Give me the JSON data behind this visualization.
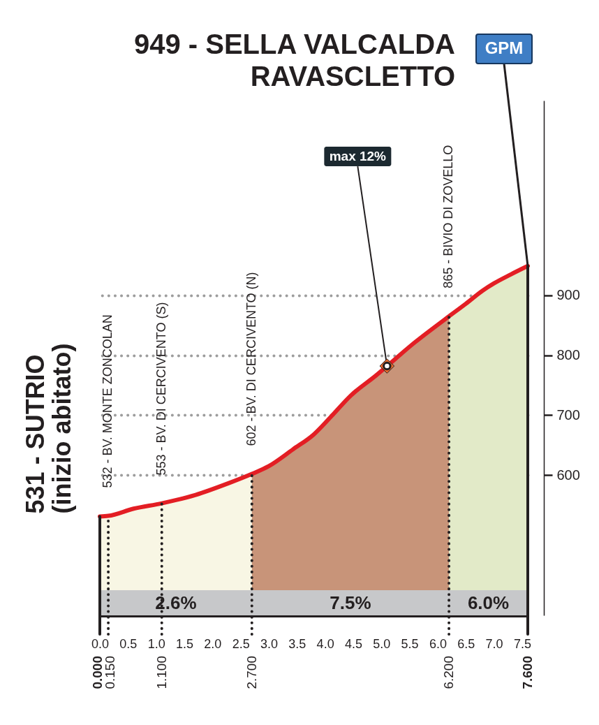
{
  "chart_data": {
    "type": "area",
    "title": "949 - SELLA VALCALDA\nRAVASCLETTO",
    "xlim": [
      0,
      7.6
    ],
    "xticks": [
      {
        "value": 0,
        "label": "0.0"
      },
      0.5,
      {
        "value": 1,
        "label": "1.0"
      },
      1.5,
      {
        "value": 2,
        "label": "2.0"
      },
      2.5,
      {
        "value": 3,
        "label": "3.0"
      },
      3.5,
      {
        "value": 4,
        "label": "4.0"
      },
      4.5,
      {
        "value": 5,
        "label": "5.0"
      },
      5.5,
      {
        "value": 6,
        "label": "6.0"
      },
      6.5,
      {
        "value": 7,
        "label": "7.0"
      },
      7.5
    ],
    "ylim": [
      366,
      1225
    ],
    "yticks": [
      600,
      700,
      800,
      900
    ],
    "grid": "y",
    "series": [
      {
        "name": "2.6%",
        "color": "#f8f6e4",
        "x": [
          0,
          0.15,
          0.6,
          1.1,
          1.7,
          2.3,
          2.7
        ],
        "values": [
          531,
          532,
          544,
          553,
          567,
          587,
          602
        ]
      },
      {
        "name": "7.5%",
        "color": "#c89479",
        "x": [
          2.7,
          3.0,
          3.43,
          3.8,
          4.1,
          4.46,
          4.9,
          5.6,
          6.2
        ],
        "values": [
          602,
          615,
          643,
          668,
          697,
          733,
          766,
          822,
          865
        ]
      },
      {
        "name": "6.0%",
        "color": "#e2eac8",
        "x": [
          6.2,
          6.5,
          6.8,
          7.0,
          7.3,
          7.6
        ],
        "values": [
          865,
          886,
          908,
          920,
          935,
          949
        ]
      },
      {
        "type": "line",
        "color": "#e31e24",
        "x": [
          0,
          0.15,
          0.6,
          1.1,
          1.7,
          2.3,
          2.7,
          3.0,
          3.43,
          3.8,
          4.1,
          4.46,
          4.9,
          5.6,
          6.2,
          6.5,
          6.8,
          7.0,
          7.3,
          7.6
        ],
        "values": [
          531,
          532,
          544,
          553,
          567,
          587,
          602,
          615,
          643,
          668,
          697,
          733,
          766,
          822,
          865,
          886,
          908,
          920,
          935,
          949
        ]
      }
    ],
    "bands": [
      {
        "axis": "y",
        "from": 366,
        "to": 408,
        "color": "#c7c8ca"
      }
    ],
    "ref_lines": [
      {
        "axis": "x",
        "value": 0,
        "label": "0.000",
        "line_style": "solid"
      },
      {
        "axis": "x",
        "value": 0.15,
        "label": "0.150",
        "line_style": "dotted"
      },
      {
        "axis": "x",
        "value": 1.1,
        "label": "1.100",
        "line_style": "dotted"
      },
      {
        "axis": "x",
        "value": 2.7,
        "label": "2.700",
        "line_style": "dotted"
      },
      {
        "axis": "x",
        "value": 6.2,
        "label": "6.200",
        "line_style": "dotted"
      },
      {
        "axis": "x",
        "value": 7.6,
        "label": "7.600",
        "line_style": "solid"
      }
    ],
    "annotations": [
      {
        "text": "531 - SUTRIO\n(inizio abitato)",
        "x": 0,
        "y": 531
      },
      {
        "text": "532 - BV. MONTE ZONCOLAN",
        "x": 0.15,
        "y": 532
      },
      {
        "text": "553 - BV. DI CERCIVENTO (S)",
        "x": 1.1,
        "y": 553
      },
      {
        "text": "602 - BV. DI CERCIVENTO (N)",
        "x": 2.7,
        "y": 602
      },
      {
        "text": "865 - BIVIO DI ZOVELLO",
        "x": 6.2,
        "y": 865
      },
      {
        "text": "max 12%",
        "x": 5.1,
        "y": 782
      },
      {
        "text": "GPM",
        "x": 7.6,
        "y": 949
      }
    ]
  }
}
